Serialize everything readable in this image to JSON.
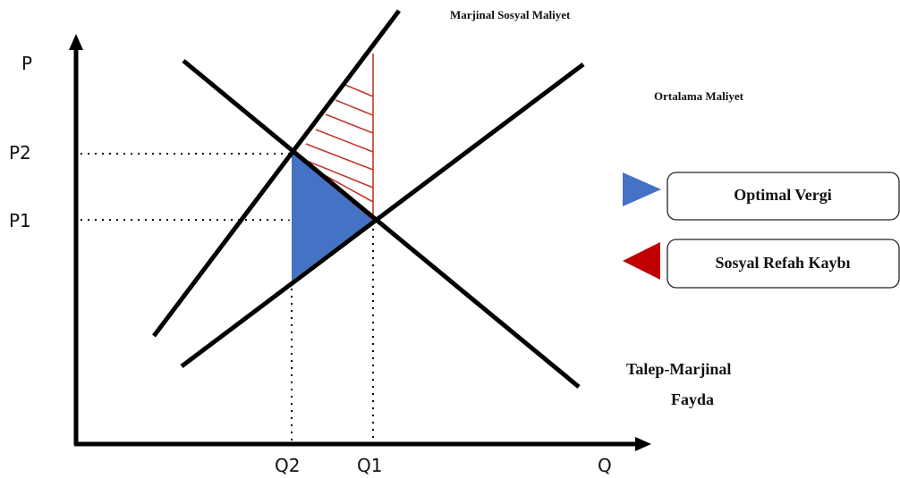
{
  "axes": {
    "y_label": "P",
    "x_label": "Q",
    "price_levels": [
      "P2",
      "P1"
    ],
    "quantity_levels": [
      "Q2",
      "Q1"
    ]
  },
  "curves": {
    "marginal_social_cost": "Marjinal Sosyal Maliyet",
    "average_cost": "Ortalama Maliyet",
    "demand_line1": "Talep-Marjinal",
    "demand_line2": "Fayda"
  },
  "legend": [
    {
      "label": "Optimal Vergi",
      "color": "#4472c4"
    },
    {
      "label": "Sosyal Refah Kaybı",
      "color": "#c00000"
    }
  ],
  "colors": {
    "tax_fill": "#4472c4",
    "welfare_loss_hatch": "#c0392b",
    "lines": "#000000"
  }
}
